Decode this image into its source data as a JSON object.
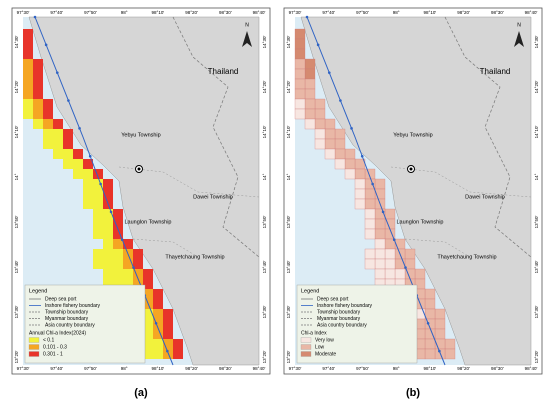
{
  "axes": {
    "top": [
      "97°30'",
      "97°40'",
      "97°50'",
      "98°",
      "98°10'",
      "98°20'",
      "98°30'",
      "98°40'"
    ],
    "left": [
      "14°30'",
      "14°20'",
      "14°10'",
      "14°",
      "13°50'",
      "13°40'",
      "13°30'",
      "13°20'"
    ]
  },
  "north": "N",
  "panels": [
    {
      "label": "(a)",
      "legend": {
        "title": "Legend",
        "items": [
          "Deep sea port",
          "Inshore fishery boundary",
          "Township boundary",
          "Myanmar boundary",
          "Asia country boundary"
        ],
        "index_title": "Annual Chl-a Index(2024)",
        "classes": [
          {
            "name": "< 0.1",
            "color": "#f2f23c"
          },
          {
            "name": "0.101 - 0.3",
            "color": "#f5a623"
          },
          {
            "name": "0.301 - 1",
            "color": "#e8342a"
          }
        ]
      },
      "places": {
        "thailand": "Thailand",
        "yebyu": "Yebyu Township",
        "dawei": "Dawei Township",
        "launglon": "Launglon Township",
        "thayetchaung": "Thayetchaung Township"
      }
    },
    {
      "label": "(b)",
      "legend": {
        "title": "Legend",
        "items": [
          "Deep sea port",
          "Inshore fishery boundary",
          "Township boundary",
          "Myanmar boundary",
          "Asia country boundary"
        ],
        "index_title": "Chl-a Index",
        "classes": [
          {
            "name": "Very low",
            "color": "#f7e6e1"
          },
          {
            "name": "Low",
            "color": "#e9b7a6"
          },
          {
            "name": "Moderate",
            "color": "#d58a70"
          }
        ]
      },
      "places": {
        "thailand": "Thailand",
        "yebyu": "Yebyu Township",
        "dawei": "Dawei Township",
        "launglon": "Launglon Township",
        "thayetchaung": "Thayetchaung Township"
      }
    }
  ]
}
